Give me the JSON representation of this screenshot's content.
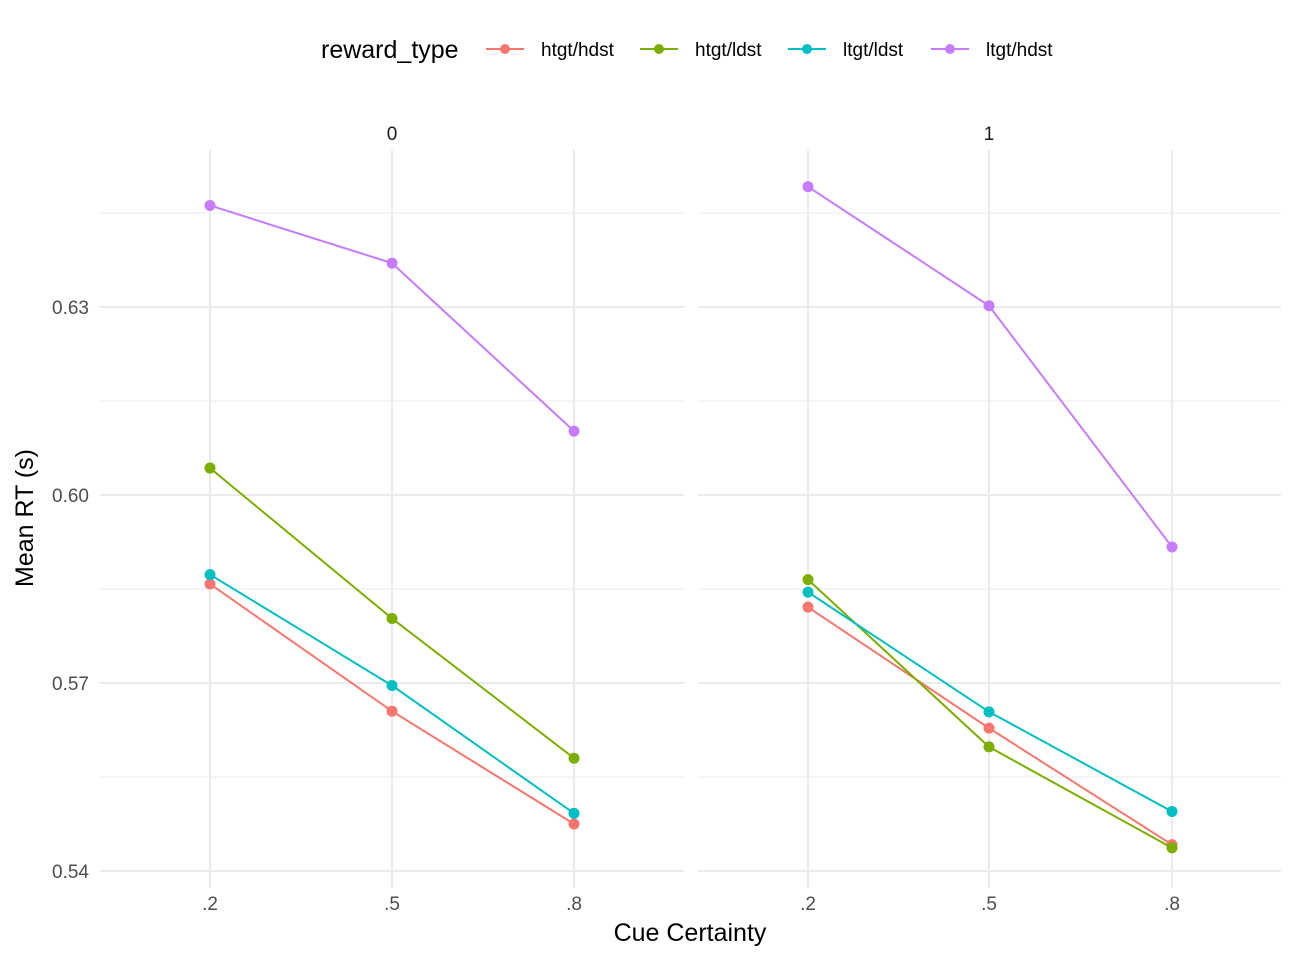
{
  "chart_data": {
    "type": "line",
    "xlabel": "Cue Certainty",
    "ylabel": "Mean RT (s)",
    "categories": [
      ".2",
      ".5",
      ".8"
    ],
    "y_ticks": [
      "0.54",
      "0.57",
      "0.60",
      "0.63"
    ],
    "ylim": [
      0.54,
      0.6535
    ],
    "grid": true,
    "legend": {
      "title": "reward_type",
      "position": "top"
    },
    "colors": {
      "htgt/hdst": "#F8766D",
      "htgt/ldst": "#7CAE00",
      "ltgt/ldst": "#00BFC4",
      "ltgt/hdst": "#C77CFF"
    },
    "panels": [
      {
        "label": "0",
        "series": [
          {
            "name": "htgt/hdst",
            "values": [
              0.5858,
              0.5655,
              0.5475
            ]
          },
          {
            "name": "htgt/ldst",
            "values": [
              0.6043,
              0.5803,
              0.558
            ]
          },
          {
            "name": "ltgt/ldst",
            "values": [
              0.5873,
              0.5696,
              0.5492
            ]
          },
          {
            "name": "ltgt/hdst",
            "values": [
              0.6462,
              0.637,
              0.6102
            ]
          }
        ]
      },
      {
        "label": "1",
        "series": [
          {
            "name": "htgt/hdst",
            "values": [
              0.5821,
              0.5628,
              0.5442
            ]
          },
          {
            "name": "htgt/ldst",
            "values": [
              0.5865,
              0.5598,
              0.5437
            ]
          },
          {
            "name": "ltgt/ldst",
            "values": [
              0.5845,
              0.5654,
              0.5495
            ]
          },
          {
            "name": "ltgt/hdst",
            "values": [
              0.6492,
              0.6302,
              0.5917
            ]
          }
        ]
      }
    ]
  }
}
